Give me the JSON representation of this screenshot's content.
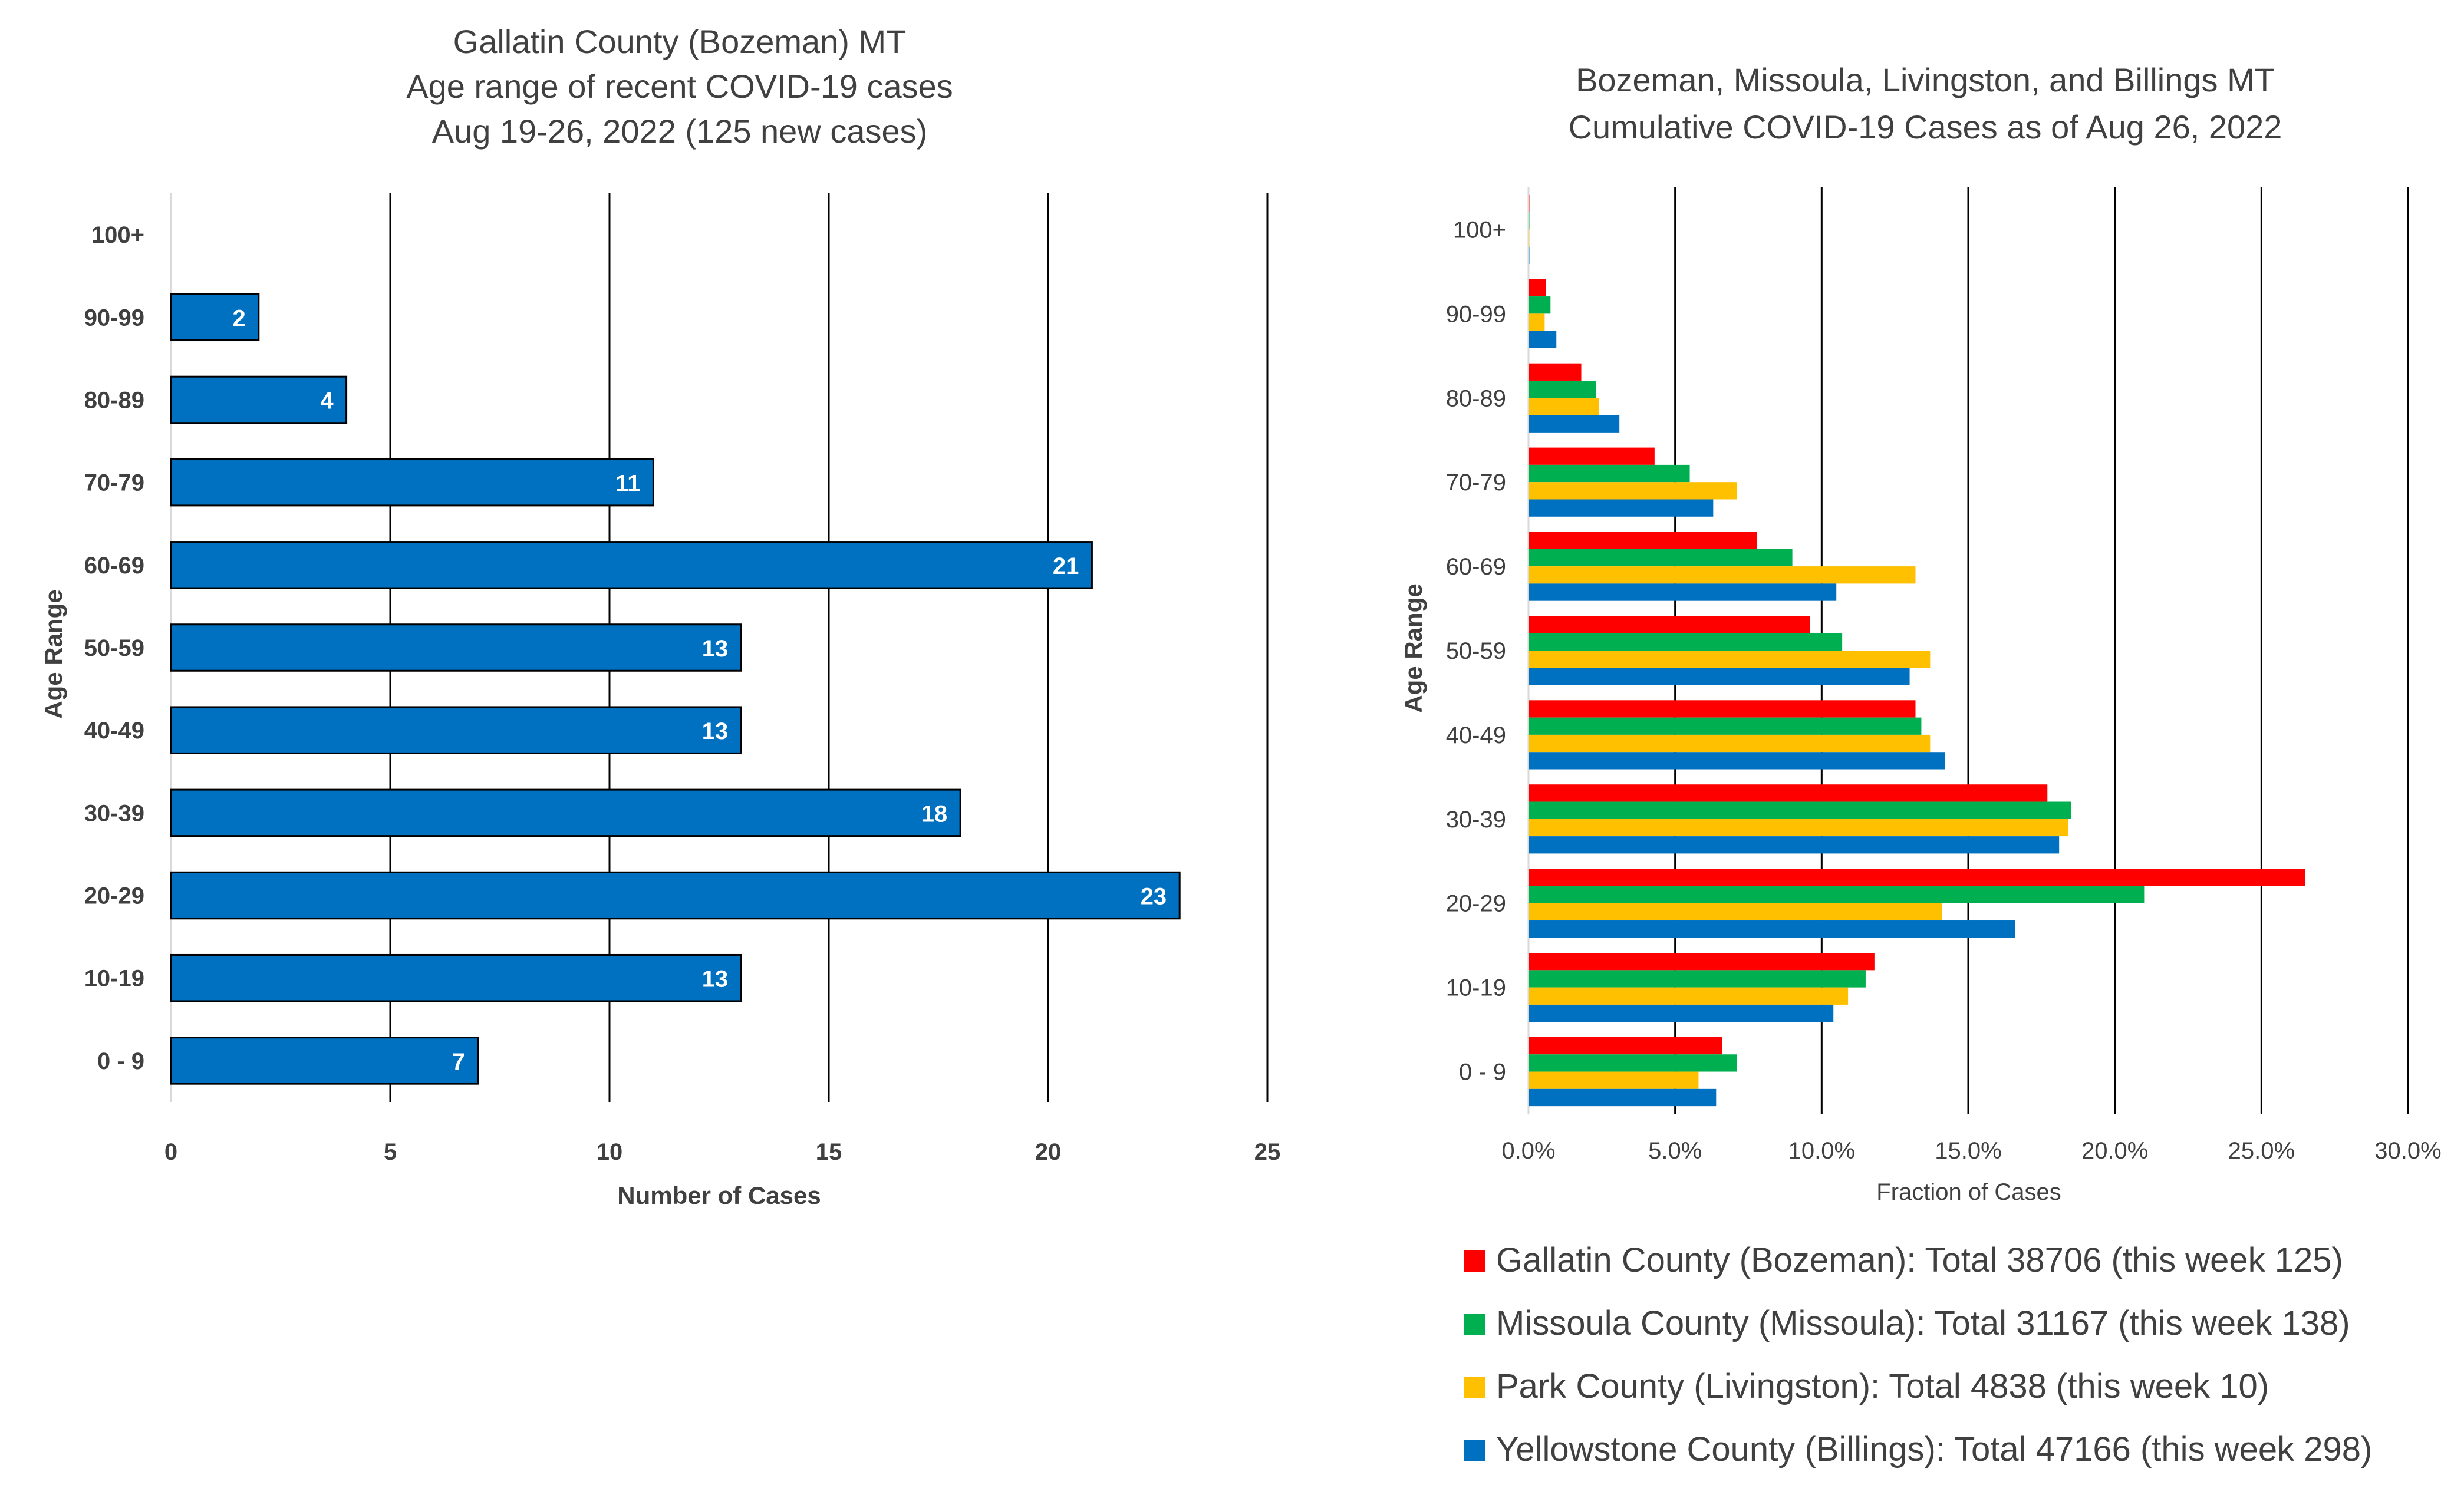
{
  "chart_data": [
    {
      "type": "bar",
      "orientation": "horizontal",
      "title_lines": [
        "Gallatin County (Bozeman) MT",
        "Age range of recent COVID-19 cases",
        "Aug 19-26, 2022 (125 new cases)"
      ],
      "categories": [
        "0 - 9",
        "10-19",
        "20-29",
        "30-39",
        "40-49",
        "50-59",
        "60-69",
        "70-79",
        "80-89",
        "90-99",
        "100+"
      ],
      "values": [
        7,
        13,
        23,
        18,
        13,
        13,
        21,
        11,
        4,
        2,
        0
      ],
      "data_labels": [
        "7",
        "13",
        "23",
        "18",
        "13",
        "13",
        "21",
        "11",
        "4",
        "2",
        ""
      ],
      "xlabel": "Number of Cases",
      "ylabel": "Age Range",
      "xlim": [
        0,
        25
      ],
      "xticks": [
        "0",
        "5",
        "10",
        "15",
        "20",
        "25"
      ],
      "grid": "vertical",
      "bar_color": "#0070C0"
    },
    {
      "type": "bar",
      "orientation": "horizontal",
      "title_lines": [
        "Bozeman, Missoula, Livingston, and Billings MT",
        "Cumulative COVID-19 Cases as of Aug 26, 2022"
      ],
      "categories": [
        "0 - 9",
        "10-19",
        "20-29",
        "30-39",
        "40-49",
        "50-59",
        "60-69",
        "70-79",
        "80-89",
        "90-99",
        "100+"
      ],
      "series": [
        {
          "name": "Gallatin County (Bozeman): Total 38706 (this week 125)",
          "color": "#FF0000",
          "values": [
            0.066,
            0.118,
            0.265,
            0.177,
            0.132,
            0.096,
            0.078,
            0.043,
            0.018,
            0.006,
            0.0003
          ]
        },
        {
          "name": "Missoula County (Missoula): Total 31167 (this week 138)",
          "color": "#00B050",
          "values": [
            0.071,
            0.115,
            0.21,
            0.185,
            0.134,
            0.107,
            0.09,
            0.055,
            0.023,
            0.0075,
            0.0003
          ]
        },
        {
          "name": "Park County (Livingston): Total 4838 (this week 10)",
          "color": "#FFC000",
          "values": [
            0.058,
            0.109,
            0.141,
            0.184,
            0.137,
            0.137,
            0.132,
            0.071,
            0.024,
            0.0055,
            0.0003
          ]
        },
        {
          "name": "Yellowstone County (Billings): Total 47166 (this week 298)",
          "color": "#0070C0",
          "values": [
            0.064,
            0.104,
            0.166,
            0.181,
            0.142,
            0.13,
            0.105,
            0.063,
            0.031,
            0.0095,
            0.0003
          ]
        }
      ],
      "xlabel": "Fraction of Cases",
      "ylabel": "Age Range",
      "xlim": [
        0,
        0.3
      ],
      "xticks": [
        "0.0%",
        "5.0%",
        "10.0%",
        "15.0%",
        "20.0%",
        "25.0%",
        "30.0%"
      ],
      "grid": "vertical",
      "legend_position": "bottom"
    }
  ]
}
